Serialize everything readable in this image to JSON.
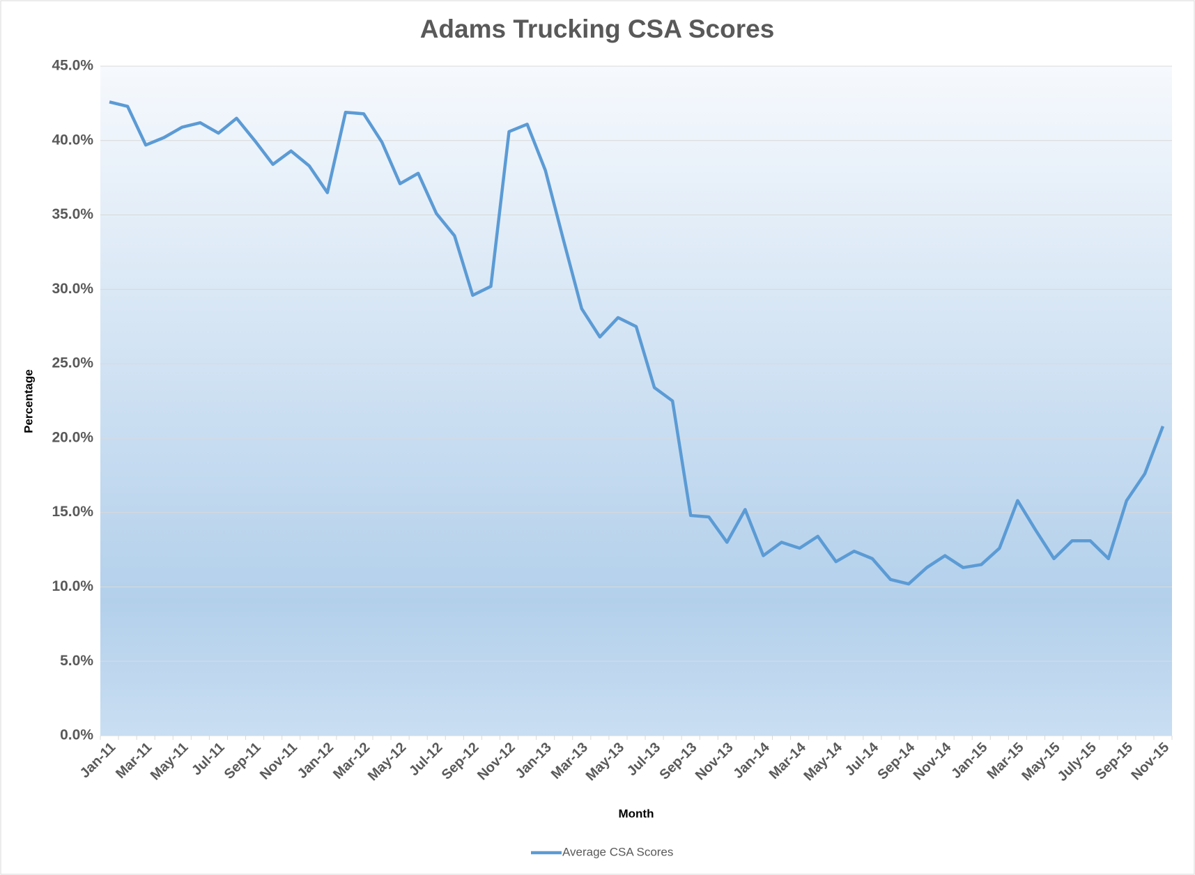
{
  "chart_data": {
    "type": "line",
    "title": "Adams Trucking CSA Scores",
    "x_label": "Month",
    "y_label": "Percentage",
    "categories": [
      "Jan-11",
      null,
      "Mar-11",
      null,
      "May-11",
      null,
      "Jul-11",
      null,
      "Sep-11",
      null,
      "Nov-11",
      null,
      "Jan-12",
      null,
      "Mar-12",
      null,
      "May-12",
      null,
      "Jul-12",
      null,
      "Sep-12",
      null,
      "Nov-12",
      null,
      "Jan-13",
      null,
      "Mar-13",
      null,
      "May-13",
      null,
      "Jul-13",
      null,
      "Sep-13",
      null,
      "Nov-13",
      null,
      "Jan-14",
      null,
      "Mar-14",
      null,
      "May-14",
      null,
      "Jul-14",
      null,
      "Sep-14",
      null,
      "Nov-14",
      null,
      "Jan-15",
      null,
      "Mar-15",
      null,
      "May-15",
      null,
      "July-15",
      null,
      "Sep-15",
      null,
      "Nov-15"
    ],
    "series": [
      {
        "name": "Average CSA Scores",
        "color": "#5b9bd5",
        "values": [
          42.6,
          42.3,
          39.7,
          40.2,
          40.9,
          41.2,
          40.5,
          41.5,
          40.0,
          38.4,
          39.3,
          38.3,
          36.5,
          41.9,
          41.8,
          39.9,
          37.1,
          37.8,
          35.1,
          33.6,
          29.6,
          30.2,
          40.6,
          41.1,
          38.0,
          33.3,
          28.7,
          26.8,
          28.1,
          27.5,
          23.4,
          22.5,
          14.8,
          14.7,
          13.0,
          15.2,
          12.1,
          13.0,
          12.6,
          13.4,
          11.7,
          12.4,
          11.9,
          10.5,
          10.2,
          11.3,
          12.1,
          11.3,
          11.5,
          12.6,
          15.8,
          13.8,
          11.9,
          13.1,
          13.1,
          11.9,
          15.8,
          17.6,
          20.8
        ]
      }
    ],
    "ylim": [
      0,
      45
    ],
    "yticks": [
      {
        "value": 0,
        "label": "0.0%"
      },
      {
        "value": 5,
        "label": "5.0%"
      },
      {
        "value": 10,
        "label": "10.0%"
      },
      {
        "value": 15,
        "label": "15.0%"
      },
      {
        "value": 20,
        "label": "20.0%"
      },
      {
        "value": 25,
        "label": "25.0%"
      },
      {
        "value": 30,
        "label": "30.0%"
      },
      {
        "value": 35,
        "label": "35.0%"
      },
      {
        "value": 40,
        "label": "40.0%"
      },
      {
        "value": 45,
        "label": "45.0%"
      }
    ],
    "grid": true,
    "legend": "bottom"
  }
}
